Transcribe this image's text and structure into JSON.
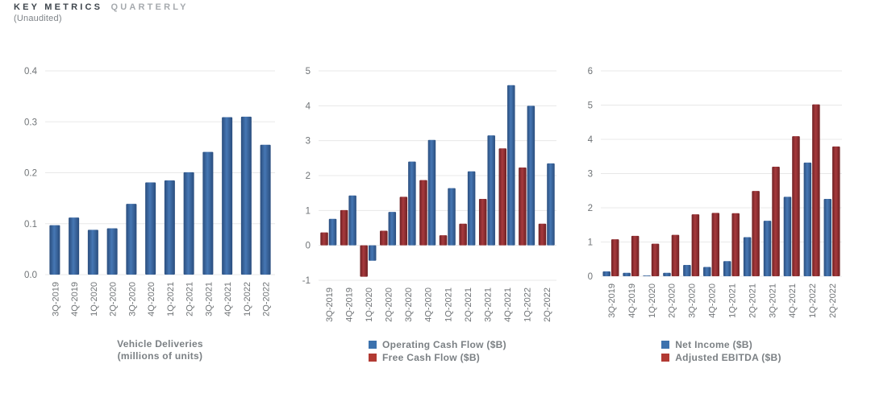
{
  "header": {
    "title_primary": "KEY METRICS",
    "title_secondary": "QUARTERLY",
    "subtitle": "(Unaudited)"
  },
  "colors": {
    "blue": "#3a6cab",
    "blue_dark": "#2a4d7d",
    "blue_light": "#4677b4",
    "red": "#9e3237",
    "red_dark": "#6f2124",
    "red_light": "#a83a3d",
    "legend_blue": "#3c72ae",
    "legend_red": "#b23a33",
    "grid": "#e8e8e8",
    "tick_text": "#6f7376",
    "caption_text": "#7b8084"
  },
  "categories": [
    "3Q-2019",
    "4Q-2019",
    "1Q-2020",
    "2Q-2020",
    "3Q-2020",
    "4Q-2020",
    "1Q-2021",
    "2Q-2021",
    "3Q-2021",
    "4Q-2021",
    "1Q-2022",
    "2Q-2022"
  ],
  "chart_data": [
    {
      "id": "vehicle-deliveries",
      "type": "bar",
      "title": "Vehicle Deliveries (millions of units)",
      "caption": [
        "Vehicle Deliveries",
        "(millions of units)"
      ],
      "xlabel": "",
      "ylabel": "",
      "ylim": [
        0,
        0.4
      ],
      "yticks": [
        "0.0",
        "0.1",
        "0.2",
        "0.3",
        "0.4"
      ],
      "grid": "horizontal",
      "legend_position": "none",
      "series": [
        {
          "name": "Vehicle Deliveries (millions of units)",
          "color": "blue",
          "values": [
            0.097,
            0.112,
            0.088,
            0.091,
            0.139,
            0.181,
            0.185,
            0.201,
            0.241,
            0.309,
            0.31,
            0.255
          ]
        }
      ]
    },
    {
      "id": "cash-flow",
      "type": "bar",
      "title": "Operating Cash Flow vs Free Cash Flow ($B)",
      "caption": [],
      "xlabel": "",
      "ylabel": "",
      "ylim": [
        -1,
        5
      ],
      "yticks": [
        "-1",
        "0",
        "1",
        "2",
        "3",
        "4",
        "5"
      ],
      "grid": "horizontal",
      "legend_position": "bottom",
      "series": [
        {
          "name": "Free Cash Flow ($B)",
          "color": "red",
          "values": [
            0.37,
            1.01,
            -0.9,
            0.42,
            1.39,
            1.87,
            0.29,
            0.62,
            1.33,
            2.78,
            2.23,
            0.62
          ]
        },
        {
          "name": "Operating Cash Flow ($B)",
          "color": "blue",
          "values": [
            0.76,
            1.43,
            -0.44,
            0.96,
            2.4,
            3.02,
            1.64,
            2.12,
            3.15,
            4.59,
            4.0,
            2.35
          ]
        }
      ],
      "legend": [
        {
          "label": "Operating Cash Flow ($B)",
          "color": "legend_blue"
        },
        {
          "label": "Free Cash Flow ($B)",
          "color": "legend_red"
        }
      ]
    },
    {
      "id": "income",
      "type": "bar",
      "title": "Net Income vs Adjusted EBITDA ($B)",
      "caption": [],
      "xlabel": "",
      "ylabel": "",
      "ylim": [
        0,
        6
      ],
      "yticks": [
        "0",
        "1",
        "2",
        "3",
        "4",
        "5",
        "6"
      ],
      "grid": "horizontal",
      "legend_position": "bottom",
      "series": [
        {
          "name": "Net Income ($B)",
          "color": "blue",
          "values": [
            0.14,
            0.1,
            0.02,
            0.1,
            0.33,
            0.27,
            0.44,
            1.14,
            1.62,
            2.32,
            3.32,
            2.26
          ]
        },
        {
          "name": "Adjusted EBITDA ($B)",
          "color": "red",
          "values": [
            1.08,
            1.18,
            0.95,
            1.21,
            1.81,
            1.85,
            1.84,
            2.49,
            3.2,
            4.09,
            5.02,
            3.79
          ]
        }
      ],
      "legend": [
        {
          "label": "Net Income ($B)",
          "color": "legend_blue"
        },
        {
          "label": "Adjusted EBITDA ($B)",
          "color": "legend_red"
        }
      ]
    }
  ]
}
